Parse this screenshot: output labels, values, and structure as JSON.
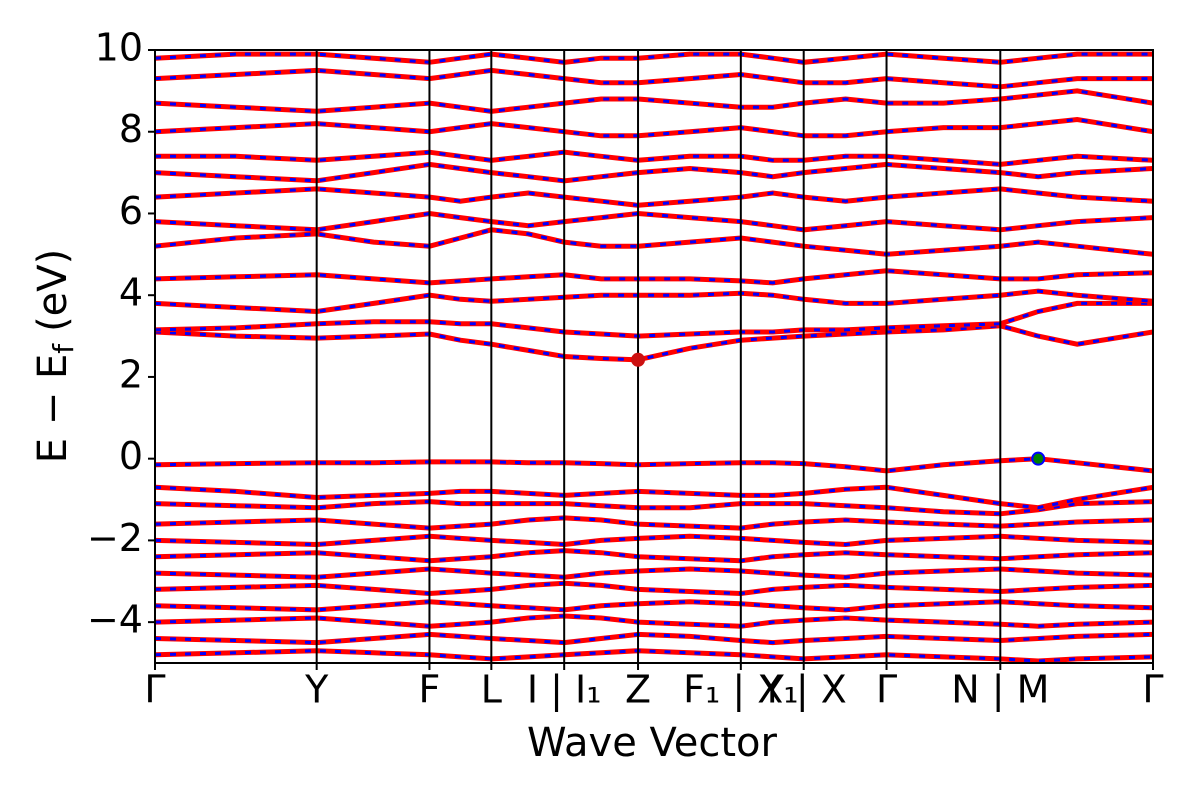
{
  "chart_data": {
    "type": "bands",
    "ylabel_main": "E − E",
    "ylabel_sub": "f",
    "ylabel_unit": "(eV)",
    "xlabel": "Wave Vector",
    "xlim": [
      0,
      10
    ],
    "ylim": [
      -5,
      10
    ],
    "yticks": [
      {
        "value": -4,
        "label": "−4"
      },
      {
        "value": -2,
        "label": "−2"
      },
      0,
      2,
      4,
      6,
      8,
      10
    ],
    "xticks": [
      {
        "value": 0,
        "label": "Γ"
      },
      {
        "value": 1.62,
        "label": "Y"
      },
      {
        "value": 2.75,
        "label": "F"
      },
      {
        "value": 3.37,
        "label": "L"
      },
      {
        "value": 4.1,
        "label": "I | I₁"
      },
      {
        "value": 4.84,
        "label": "Z"
      },
      {
        "value": 5.87,
        "label": "F₁ | X₁"
      },
      {
        "value": 6.5,
        "label": "Y | X"
      },
      {
        "value": 7.33,
        "label": "Γ"
      },
      {
        "value": 8.47,
        "label": "N | M"
      },
      {
        "value": 10,
        "label": "Γ"
      }
    ],
    "vlines": true,
    "colors": [
      "#ff0000",
      "#0000ff"
    ],
    "x": [
      0,
      0.81,
      1.62,
      2.19,
      2.75,
      3.06,
      3.37,
      3.74,
      4.1,
      4.47,
      4.84,
      5.36,
      5.87,
      6.19,
      6.5,
      6.92,
      7.33,
      7.9,
      8.47,
      8.85,
      9.24,
      10
    ],
    "bands": [
      {
        "values": [
          -4.8,
          -4.75,
          -4.7,
          -4.75,
          -4.8,
          -4.85,
          -4.9,
          -4.85,
          -4.8,
          -4.75,
          -4.7,
          -4.75,
          -4.8,
          -4.85,
          -4.9,
          -4.85,
          -4.8,
          -4.85,
          -4.9,
          -4.95,
          -4.9,
          -4.85
        ]
      },
      {
        "values": [
          -4.4,
          -4.45,
          -4.5,
          -4.4,
          -4.3,
          -4.35,
          -4.4,
          -4.45,
          -4.5,
          -4.4,
          -4.3,
          -4.35,
          -4.45,
          -4.5,
          -4.45,
          -4.4,
          -4.35,
          -4.4,
          -4.45,
          -4.4,
          -4.35,
          -4.3
        ]
      },
      {
        "values": [
          -4.0,
          -3.95,
          -3.9,
          -4.0,
          -4.1,
          -4.05,
          -4.0,
          -3.9,
          -3.85,
          -3.9,
          -4.0,
          -4.05,
          -4.1,
          -4.0,
          -3.95,
          -3.9,
          -3.95,
          -4.0,
          -4.05,
          -4.1,
          -4.05,
          -4.0
        ]
      },
      {
        "values": [
          -3.6,
          -3.65,
          -3.7,
          -3.6,
          -3.5,
          -3.55,
          -3.6,
          -3.65,
          -3.7,
          -3.6,
          -3.55,
          -3.5,
          -3.55,
          -3.6,
          -3.65,
          -3.7,
          -3.6,
          -3.55,
          -3.5,
          -3.55,
          -3.6,
          -3.65
        ]
      },
      {
        "values": [
          -3.2,
          -3.15,
          -3.1,
          -3.2,
          -3.3,
          -3.25,
          -3.2,
          -3.1,
          -3.05,
          -3.1,
          -3.2,
          -3.25,
          -3.3,
          -3.2,
          -3.15,
          -3.1,
          -3.15,
          -3.2,
          -3.25,
          -3.2,
          -3.15,
          -3.1
        ]
      },
      {
        "values": [
          -2.8,
          -2.85,
          -2.9,
          -2.8,
          -2.7,
          -2.75,
          -2.8,
          -2.85,
          -2.9,
          -2.8,
          -2.75,
          -2.7,
          -2.75,
          -2.8,
          -2.85,
          -2.9,
          -2.8,
          -2.75,
          -2.7,
          -2.75,
          -2.8,
          -2.85
        ]
      },
      {
        "values": [
          -2.4,
          -2.35,
          -2.3,
          -2.4,
          -2.5,
          -2.45,
          -2.4,
          -2.3,
          -2.25,
          -2.3,
          -2.4,
          -2.45,
          -2.5,
          -2.4,
          -2.35,
          -2.3,
          -2.35,
          -2.4,
          -2.45,
          -2.4,
          -2.35,
          -2.3
        ]
      },
      {
        "values": [
          -2.0,
          -2.05,
          -2.1,
          -2.0,
          -1.9,
          -1.95,
          -2.0,
          -2.05,
          -2.1,
          -2.0,
          -1.95,
          -1.9,
          -1.95,
          -2.0,
          -2.05,
          -2.1,
          -2.0,
          -1.95,
          -1.9,
          -1.95,
          -2.0,
          -2.05
        ]
      },
      {
        "values": [
          -1.6,
          -1.55,
          -1.5,
          -1.6,
          -1.7,
          -1.65,
          -1.6,
          -1.5,
          -1.45,
          -1.5,
          -1.6,
          -1.65,
          -1.7,
          -1.6,
          -1.55,
          -1.5,
          -1.55,
          -1.6,
          -1.65,
          -1.6,
          -1.55,
          -1.5
        ]
      },
      {
        "values": [
          -1.1,
          -1.15,
          -1.2,
          -1.1,
          -1.05,
          -1.1,
          -1.1,
          -1.1,
          -1.1,
          -1.15,
          -1.2,
          -1.2,
          -1.1,
          -1.1,
          -1.1,
          -1.15,
          -1.2,
          -1.3,
          -1.35,
          -1.25,
          -1.1,
          -1.05
        ]
      },
      {
        "values": [
          -0.7,
          -0.8,
          -0.95,
          -0.9,
          -0.85,
          -0.8,
          -0.8,
          -0.85,
          -0.9,
          -0.85,
          -0.8,
          -0.85,
          -0.9,
          -0.9,
          -0.85,
          -0.75,
          -0.7,
          -0.9,
          -1.1,
          -1.2,
          -1.0,
          -0.7
        ]
      },
      {
        "values": [
          -0.15,
          -0.12,
          -0.1,
          -0.1,
          -0.08,
          -0.08,
          -0.08,
          -0.1,
          -0.1,
          -0.12,
          -0.15,
          -0.12,
          -0.1,
          -0.1,
          -0.12,
          -0.2,
          -0.3,
          -0.15,
          -0.05,
          0,
          -0.1,
          -0.3
        ]
      },
      {
        "values": [
          3.1,
          3.0,
          2.95,
          3.0,
          3.05,
          2.9,
          2.8,
          2.65,
          2.5,
          2.45,
          2.42,
          2.7,
          2.9,
          2.95,
          3.0,
          3.05,
          3.1,
          3.15,
          3.25,
          3.0,
          2.8,
          3.1
        ]
      },
      {
        "values": [
          3.15,
          3.2,
          3.3,
          3.35,
          3.35,
          3.3,
          3.3,
          3.2,
          3.1,
          3.05,
          3.0,
          3.05,
          3.1,
          3.1,
          3.15,
          3.15,
          3.2,
          3.25,
          3.3,
          3.6,
          3.8,
          3.8
        ]
      },
      {
        "values": [
          3.8,
          3.7,
          3.6,
          3.8,
          4.0,
          3.9,
          3.85,
          3.9,
          3.95,
          4.0,
          4.0,
          4.0,
          4.05,
          4.0,
          3.9,
          3.8,
          3.8,
          3.9,
          4.0,
          4.1,
          4.0,
          3.85
        ]
      },
      {
        "values": [
          4.4,
          4.45,
          4.5,
          4.4,
          4.3,
          4.35,
          4.4,
          4.45,
          4.5,
          4.4,
          4.4,
          4.4,
          4.35,
          4.3,
          4.4,
          4.5,
          4.6,
          4.5,
          4.4,
          4.4,
          4.5,
          4.55
        ]
      },
      {
        "values": [
          5.2,
          5.4,
          5.5,
          5.3,
          5.2,
          5.4,
          5.6,
          5.5,
          5.3,
          5.2,
          5.2,
          5.3,
          5.4,
          5.3,
          5.2,
          5.1,
          5.0,
          5.1,
          5.2,
          5.3,
          5.2,
          5.0
        ]
      },
      {
        "values": [
          5.8,
          5.7,
          5.6,
          5.8,
          6.0,
          5.9,
          5.8,
          5.7,
          5.8,
          5.9,
          6.0,
          5.9,
          5.8,
          5.7,
          5.6,
          5.7,
          5.8,
          5.7,
          5.6,
          5.7,
          5.8,
          5.9
        ]
      },
      {
        "values": [
          6.4,
          6.5,
          6.6,
          6.5,
          6.4,
          6.3,
          6.4,
          6.5,
          6.4,
          6.3,
          6.2,
          6.3,
          6.4,
          6.5,
          6.4,
          6.3,
          6.4,
          6.5,
          6.6,
          6.5,
          6.4,
          6.3
        ]
      },
      {
        "values": [
          7.0,
          6.9,
          6.8,
          7.0,
          7.2,
          7.1,
          7.0,
          6.9,
          6.8,
          6.9,
          7.0,
          7.1,
          7.0,
          6.9,
          7.0,
          7.1,
          7.2,
          7.1,
          7.0,
          6.9,
          7.0,
          7.1
        ]
      },
      {
        "values": [
          7.4,
          7.4,
          7.3,
          7.4,
          7.5,
          7.4,
          7.3,
          7.4,
          7.5,
          7.4,
          7.3,
          7.4,
          7.4,
          7.3,
          7.3,
          7.4,
          7.4,
          7.3,
          7.2,
          7.3,
          7.4,
          7.3
        ]
      },
      {
        "values": [
          8.0,
          8.1,
          8.2,
          8.1,
          8.0,
          8.1,
          8.2,
          8.1,
          8.0,
          7.9,
          7.9,
          8.0,
          8.1,
          8.0,
          7.9,
          7.9,
          8.0,
          8.1,
          8.1,
          8.2,
          8.3,
          8.0
        ]
      },
      {
        "values": [
          8.7,
          8.6,
          8.5,
          8.6,
          8.7,
          8.6,
          8.5,
          8.6,
          8.7,
          8.8,
          8.8,
          8.7,
          8.6,
          8.6,
          8.7,
          8.8,
          8.7,
          8.7,
          8.8,
          8.9,
          9.0,
          8.7
        ]
      },
      {
        "values": [
          9.3,
          9.4,
          9.5,
          9.4,
          9.3,
          9.4,
          9.5,
          9.4,
          9.3,
          9.2,
          9.2,
          9.3,
          9.4,
          9.3,
          9.2,
          9.2,
          9.3,
          9.2,
          9.1,
          9.2,
          9.3,
          9.3
        ]
      },
      {
        "values": [
          9.8,
          9.9,
          9.9,
          9.8,
          9.7,
          9.8,
          9.9,
          9.8,
          9.7,
          9.8,
          9.8,
          9.9,
          9.9,
          9.8,
          9.7,
          9.8,
          9.9,
          9.8,
          9.7,
          9.8,
          9.9,
          9.9
        ]
      }
    ],
    "points": [
      {
        "x": 4.84,
        "y": 2.42,
        "color": "#cc1111",
        "edge": "#cc1111"
      },
      {
        "x": 8.85,
        "y": 0,
        "color": "#008000",
        "edge": "#0000ff"
      }
    ]
  }
}
